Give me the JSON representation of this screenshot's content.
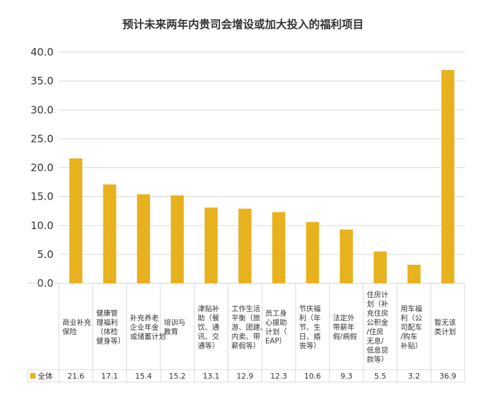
{
  "chart_data": {
    "type": "bar",
    "title": "预计未来两年内贵司会增设或加大投入的福利项目",
    "xlabel": "",
    "ylabel": "",
    "ylim": [
      0,
      40
    ],
    "yticks": [
      "0.0",
      "5.0",
      "10.0",
      "15.0",
      "20.0",
      "25.0",
      "30.0",
      "35.0",
      "40.0"
    ],
    "grid": true,
    "legend": "bottom-left",
    "categories": [
      "商业补充保险",
      "健康管理福利（体检健身等）",
      "补充养老（企业年金、储蓄计划）",
      "培训与教育",
      "津贴补助（餐饮、通讯、交通等）",
      "工作生活平衡（旅游、团建、内卖、带薪假等）",
      "员工身心援助计划（EAP）",
      "节庆福利（年节、生日、婚丧等）",
      "法定外带薪年假/病假",
      "住房计划（补充住房公积金/住房无息/低息贷款等）",
      "用车福利（公司配车/购车补贴）",
      "暂无该类计划"
    ],
    "category_lines": [
      [
        "商业补充",
        "保险"
      ],
      [
        "健康管",
        "理福利",
        "（体检",
        "健身等）"
      ],
      [
        "补充养老",
        "企业年金",
        "或储蓄计划"
      ],
      [
        "培训与",
        "教育"
      ],
      [
        "津贴补",
        "助（餐",
        "饮、通",
        "讯、交",
        "通等）"
      ],
      [
        "工作生活",
        "平衡（旅",
        "游、团建、",
        "内卖、带",
        "薪假等）"
      ],
      [
        "员工身",
        "心援助",
        "计划（",
        "EAP）"
      ],
      [
        "节庆福",
        "利（年",
        "节、生",
        "日、婚",
        "丧等）"
      ],
      [
        "法定外",
        "带薪年",
        "假/病假"
      ],
      [
        "住房计",
        "划（补",
        "充住房",
        "公积金",
        "/住房",
        "无息/",
        "低息贷",
        "款等）"
      ],
      [
        "用车福",
        "利（公",
        "司配车",
        "/购车",
        "补贴）"
      ],
      [
        "暂无该",
        "类计划"
      ]
    ],
    "series": [
      {
        "name": "全体",
        "color": "#E8B21E",
        "values": [
          21.6,
          17.1,
          15.4,
          15.2,
          13.1,
          12.9,
          12.3,
          10.6,
          9.3,
          5.5,
          3.2,
          36.9
        ],
        "value_labels": [
          "21.6",
          "17.1",
          "15.4",
          "15.2",
          "13.1",
          "12.9",
          "12.3",
          "10.6",
          "9.3",
          "5.5",
          "3.2",
          "36.9"
        ]
      }
    ]
  }
}
